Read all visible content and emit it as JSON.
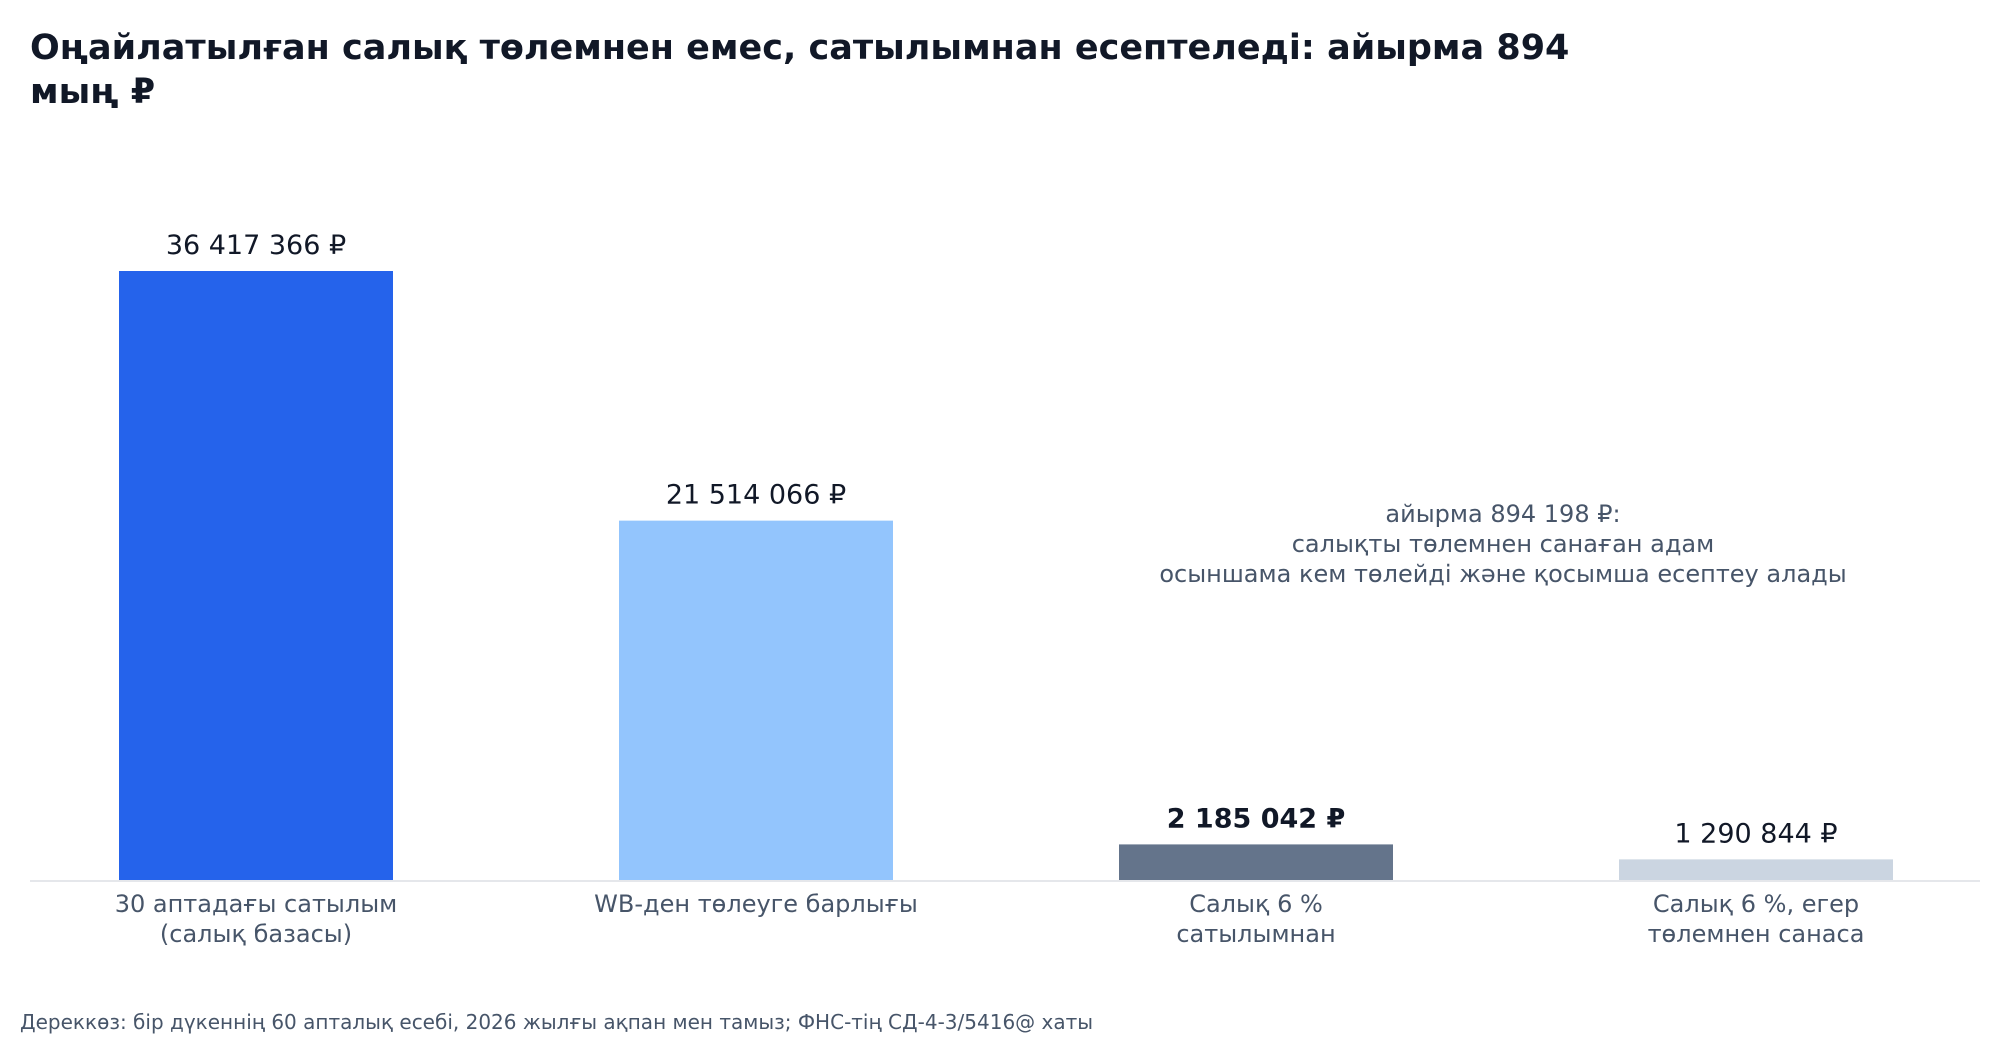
{
  "chart_data": {
    "type": "bar",
    "title": "Оңайлатылған салық төлемнен емес, сатылымнан есептеледі: айырма 894 мың ₽",
    "categories": [
      [
        "30 аптадағы сатылым",
        "(салық базасы)"
      ],
      [
        "WB-ден төлеуге барлығы"
      ],
      [
        "Салық 6 %",
        "сатылымнан"
      ],
      [
        "Салық 6 %, егер",
        "төлемнен санаса"
      ]
    ],
    "values": [
      36417366,
      21514066,
      2185042,
      1290844
    ],
    "value_labels": [
      "36 417 366 ₽",
      "21 514 066 ₽",
      "2 185 042 ₽",
      "1 290 844 ₽"
    ],
    "bold_value_index": 2,
    "colors": [
      "#2563eb",
      "#93c5fd",
      "#64748b",
      "#cbd5e1"
    ],
    "ylim": [
      0,
      36417366
    ],
    "grid": false,
    "annotation": {
      "lines": [
        "айырма 894 198 ₽:",
        "салықты төлемнен санаған адам",
        "осыншама кем төлейді және қосымша есептеу алады"
      ]
    },
    "source": "Дереккөз: бір дүкеннің 60 апталық есебі, 2026 жылғы ақпан мен тамыз; ФНС-тің СД-4-3/5416@ хаты"
  },
  "colors": {
    "title": "#111827",
    "axis_label": "#475569",
    "value_label": "#111827",
    "baseline": "#e5e7eb"
  }
}
